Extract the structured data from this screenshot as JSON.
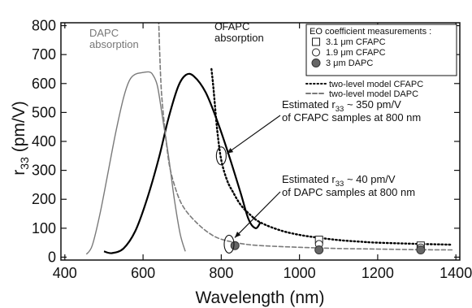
{
  "chart_data": {
    "type": "line",
    "xlabel": "Wavelength (nm)",
    "ylabel": {
      "main": "r",
      "sub": "33",
      "rest": " (pm/V)"
    },
    "xlim": [
      390,
      1410
    ],
    "ylim": [
      -10,
      810
    ],
    "xticks": [
      400,
      600,
      800,
      1000,
      1200,
      1400
    ],
    "yticks": [
      0,
      100,
      200,
      300,
      400,
      500,
      600,
      700,
      800
    ],
    "grid": false,
    "absorption_curves": [
      {
        "label": [
          "DAPC",
          "absorption"
        ],
        "color": "#7a7a7a",
        "points": [
          [
            455,
            10
          ],
          [
            470,
            40
          ],
          [
            490,
            150
          ],
          [
            510,
            290
          ],
          [
            530,
            430
          ],
          [
            550,
            550
          ],
          [
            565,
            610
          ],
          [
            580,
            632
          ],
          [
            600,
            638
          ],
          [
            615,
            640
          ],
          [
            625,
            630
          ],
          [
            637,
            590
          ],
          [
            650,
            480
          ],
          [
            665,
            350
          ],
          [
            680,
            200
          ],
          [
            695,
            80
          ],
          [
            708,
            20
          ]
        ]
      },
      {
        "label": [
          "CFAPC",
          "absorption"
        ],
        "color": "#000000",
        "points": [
          [
            500,
            20
          ],
          [
            520,
            14
          ],
          [
            550,
            30
          ],
          [
            580,
            90
          ],
          [
            610,
            200
          ],
          [
            640,
            340
          ],
          [
            665,
            480
          ],
          [
            690,
            590
          ],
          [
            710,
            630
          ],
          [
            730,
            625
          ],
          [
            760,
            570
          ],
          [
            790,
            470
          ],
          [
            820,
            350
          ],
          [
            850,
            220
          ],
          [
            870,
            130
          ],
          [
            888,
            100
          ],
          [
            900,
            120
          ]
        ]
      }
    ],
    "series": [
      {
        "name": "two-level model CFAPC",
        "style": "dotted",
        "color": "#000000",
        "points": [
          [
            775,
            650
          ],
          [
            780,
            585
          ],
          [
            790,
            435
          ],
          [
            800,
            335
          ],
          [
            815,
            265
          ],
          [
            830,
            225
          ],
          [
            850,
            180
          ],
          [
            875,
            145
          ],
          [
            900,
            120
          ],
          [
            950,
            93
          ],
          [
            1000,
            77
          ],
          [
            1050,
            67
          ],
          [
            1100,
            59
          ],
          [
            1150,
            54
          ],
          [
            1200,
            50
          ],
          [
            1300,
            46
          ],
          [
            1390,
            43
          ]
        ]
      },
      {
        "name": "two-level model DAPC",
        "style": "dashed",
        "color": "#7a7a7a",
        "points": [
          [
            640,
            820
          ],
          [
            645,
            620
          ],
          [
            650,
            520
          ],
          [
            660,
            390
          ],
          [
            670,
            300
          ],
          [
            690,
            210
          ],
          [
            710,
            160
          ],
          [
            740,
            115
          ],
          [
            770,
            82
          ],
          [
            800,
            62
          ],
          [
            850,
            47
          ],
          [
            900,
            40
          ],
          [
            1000,
            34
          ],
          [
            1100,
            30
          ],
          [
            1200,
            28
          ],
          [
            1300,
            26
          ],
          [
            1390,
            25
          ]
        ]
      }
    ],
    "measurements": [
      {
        "label": "3.1 μm CFAPC",
        "marker": "square",
        "points": [
          [
            1050,
            60
          ],
          [
            1310,
            40
          ]
        ]
      },
      {
        "label": "1.9 μm CFAPC",
        "marker": "circle",
        "points": [
          [
            1050,
            45
          ],
          [
            1310,
            33
          ]
        ]
      },
      {
        "label": "3 μm DAPC",
        "marker": "filled-circle",
        "points": [
          [
            835,
            40
          ],
          [
            1050,
            25
          ],
          [
            1310,
            25
          ]
        ]
      }
    ],
    "legend": {
      "title": "EO coefficient measurements :",
      "placement": "top-right"
    },
    "annotations": [
      {
        "text_pre": "Estimated r",
        "text_sub": "33",
        "text_post": " ~ 350 pm/V",
        "line2": "of CFAPC samples at 800 nm",
        "target": [
          800,
          350
        ]
      },
      {
        "text_pre": "Estimated r",
        "text_sub": "33",
        "text_post": " ~ 40 pm/V",
        "line2": "of DAPC samples at 800 nm",
        "target": [
          820,
          45
        ]
      }
    ]
  }
}
